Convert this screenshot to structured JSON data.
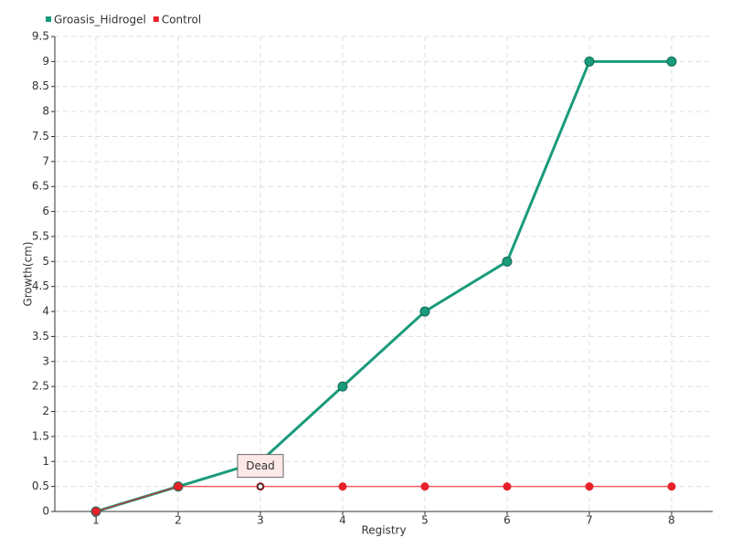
{
  "chart_data": {
    "type": "line",
    "x": [
      1,
      2,
      3,
      4,
      5,
      6,
      7,
      8
    ],
    "series": [
      {
        "name": "Groasis_Hidrogel",
        "color": "#1a9b7b",
        "values": [
          0,
          0.5,
          1,
          2.5,
          4,
          5,
          9,
          9
        ]
      },
      {
        "name": "Control",
        "color": "#e8202a",
        "values": [
          0,
          0.5,
          0.5,
          0.5,
          0.5,
          0.5,
          0.5,
          0.5
        ]
      }
    ],
    "xlabel": "Registry",
    "ylabel": "Growth(cm)",
    "xlim": [
      0.5,
      8.5
    ],
    "xticks": [
      1,
      2,
      3,
      4,
      5,
      6,
      7,
      8
    ],
    "ylim": [
      0,
      9.5
    ],
    "yticks": [
      0,
      0.5,
      1,
      1.5,
      2,
      2.5,
      3,
      3.5,
      4,
      4.5,
      5,
      5.5,
      6,
      6.5,
      7,
      7.5,
      8,
      8.5,
      9,
      9.5
    ],
    "grid": true,
    "legend": "top-left",
    "annotations": [
      {
        "text": "Dead",
        "x": 3,
        "y": 0.5
      }
    ]
  }
}
